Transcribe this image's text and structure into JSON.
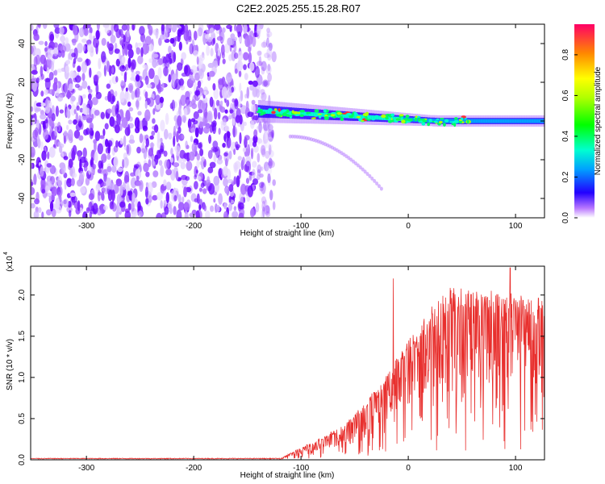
{
  "title": "C2E2.2025.255.15.28.R07",
  "chart_data": [
    {
      "type": "heatmap",
      "name": "spectrogram",
      "xlabel": "Height of straight line (km)",
      "ylabel": "Frequency (Hz)",
      "xlim": [
        -352,
        127
      ],
      "ylim": [
        -50,
        50
      ],
      "xticks": [
        -300,
        -200,
        -100,
        0,
        100
      ],
      "xtick_labels": [
        "-300",
        "-200",
        "-100",
        "0",
        "100"
      ],
      "yticks": [
        -40,
        -20,
        0,
        20,
        40
      ],
      "ytick_labels": [
        "-40",
        "-20",
        "0",
        "20",
        "40"
      ],
      "regions": [
        {
          "name": "broadband noise",
          "x_range": [
            -352,
            -140
          ],
          "y_range": [
            -50,
            50
          ],
          "amplitude": 0.2
        },
        {
          "name": "signal band",
          "x_range": [
            -140,
            127
          ],
          "center_hz_start": 5,
          "center_hz_end": 0,
          "amplitude": 0.5
        },
        {
          "name": "faint arc",
          "x_range": [
            -110,
            -25
          ],
          "y_range": [
            -35,
            -8
          ],
          "amplitude": 0.15
        }
      ]
    },
    {
      "type": "colorbar",
      "label": "Normalized spectral amplitude",
      "range": [
        0,
        0.95
      ],
      "ticks": [
        0.0,
        0.2,
        0.4,
        0.6,
        0.8
      ],
      "tick_labels": [
        "0.0",
        "0.2",
        "0.4",
        "0.6",
        "0.8"
      ]
    },
    {
      "type": "line",
      "name": "snr",
      "xlabel": "Height of straight line (km)",
      "ylabel": "SNR (10 * v/v)",
      "scale_label": "(x10",
      "scale_exponent": "4",
      "xlim": [
        -352,
        127
      ],
      "ylim": [
        0,
        2.35
      ],
      "xticks": [
        -300,
        -200,
        -100,
        0,
        100
      ],
      "xtick_labels": [
        "-300",
        "-200",
        "-100",
        "0",
        "100"
      ],
      "yticks": [
        0.0,
        0.5,
        1.0,
        1.5,
        2.0
      ],
      "ytick_labels": [
        "0.0",
        "0.5",
        "1.0",
        "1.5",
        "2.0"
      ],
      "color": "#e8302e",
      "envelope": [
        {
          "x": -352,
          "y": 0.01
        },
        {
          "x": -120,
          "y": 0.01
        },
        {
          "x": -110,
          "y": 0.08
        },
        {
          "x": -100,
          "y": 0.15
        },
        {
          "x": -80,
          "y": 0.28
        },
        {
          "x": -60,
          "y": 0.42
        },
        {
          "x": -40,
          "y": 0.7
        },
        {
          "x": -20,
          "y": 1.05
        },
        {
          "x": 0,
          "y": 1.45
        },
        {
          "x": 20,
          "y": 1.85
        },
        {
          "x": 40,
          "y": 2.1
        },
        {
          "x": 60,
          "y": 2.1
        },
        {
          "x": 80,
          "y": 2.05
        },
        {
          "x": 100,
          "y": 2.05
        },
        {
          "x": 127,
          "y": 1.95
        }
      ],
      "spikes": [
        {
          "x": -14,
          "y": 2.2
        },
        {
          "x": 95,
          "y": 2.33
        }
      ]
    }
  ]
}
